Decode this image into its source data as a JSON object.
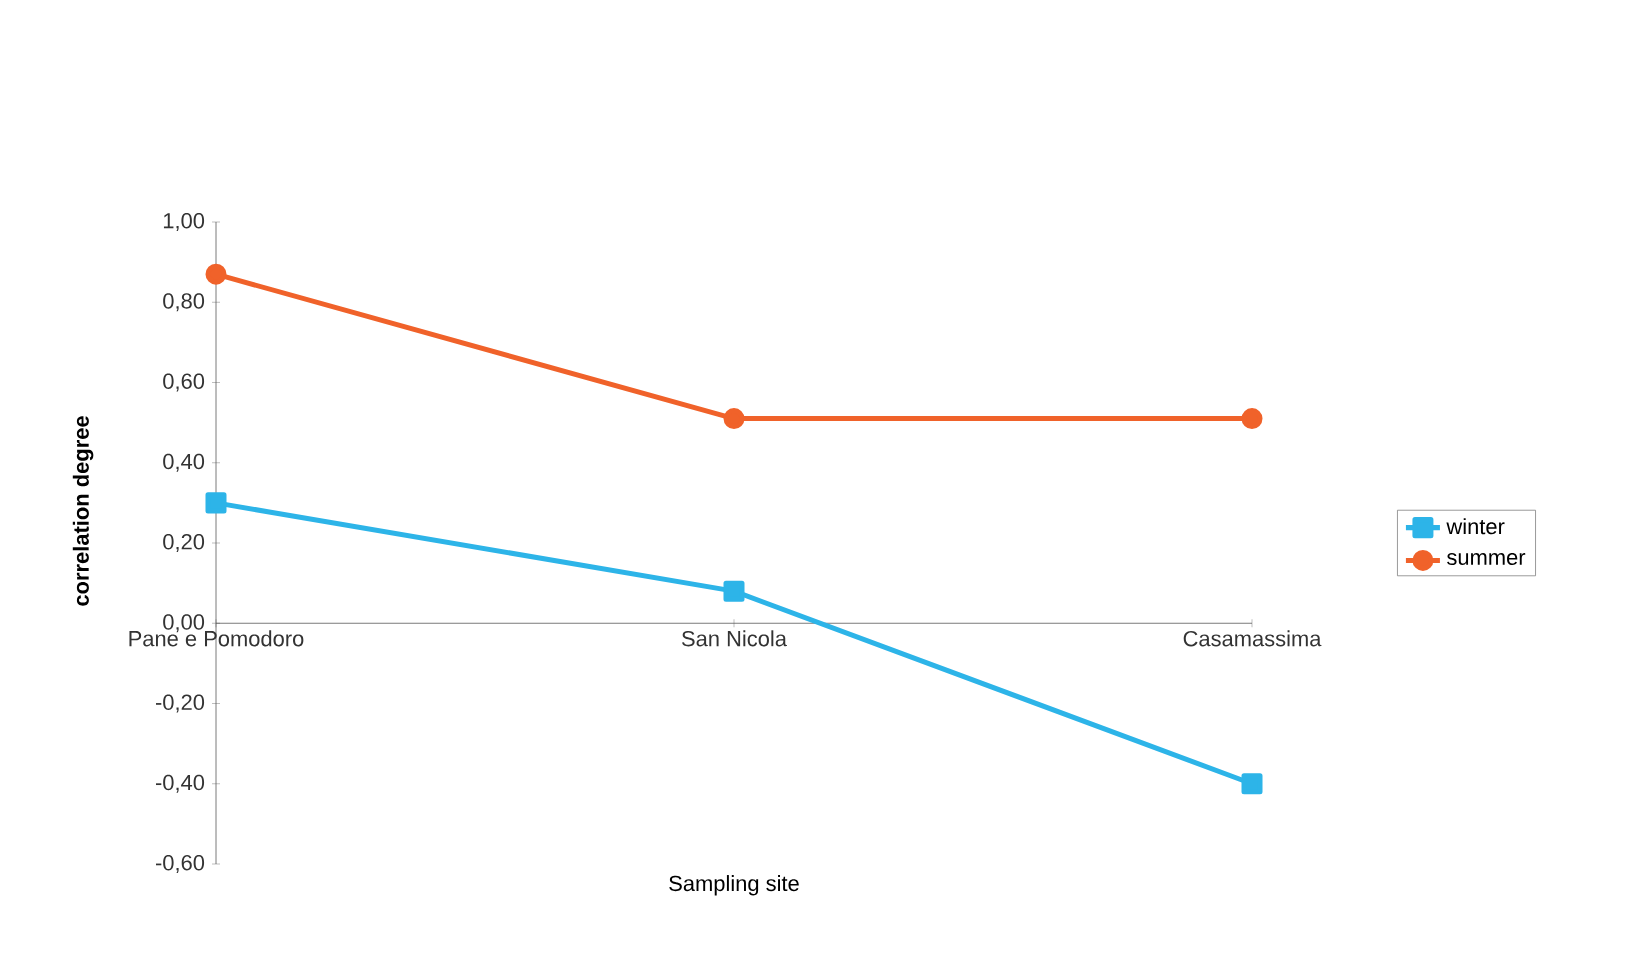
{
  "chart_data": {
    "type": "line",
    "xlabel": "Sampling site",
    "ylabel": "correlation degree",
    "categories": [
      "Pane e Pomodoro",
      "San Nicola",
      "Casamassima"
    ],
    "series": [
      {
        "name": "winter",
        "color": "#2db4e8",
        "marker": "square",
        "values": [
          0.3,
          0.08,
          -0.4
        ]
      },
      {
        "name": "summer",
        "color": "#f0622a",
        "marker": "circle",
        "values": [
          0.87,
          0.51,
          0.51
        ]
      }
    ],
    "ylim": [
      -0.6,
      1.0
    ],
    "yticks": [
      {
        "value": -0.6,
        "label": "-0,60"
      },
      {
        "value": -0.4,
        "label": "-0,40"
      },
      {
        "value": -0.2,
        "label": "-0,20"
      },
      {
        "value": 0,
        "label": "0,00"
      },
      {
        "value": 0.2,
        "label": "0,20"
      },
      {
        "value": 0.4,
        "label": "0,40"
      },
      {
        "value": 0.6,
        "label": "0,60"
      },
      {
        "value": 0.8,
        "label": "0,80"
      },
      {
        "value": 1.0,
        "label": "1,00"
      }
    ],
    "legend": "right",
    "grid": false,
    "line_style": "solid"
  }
}
